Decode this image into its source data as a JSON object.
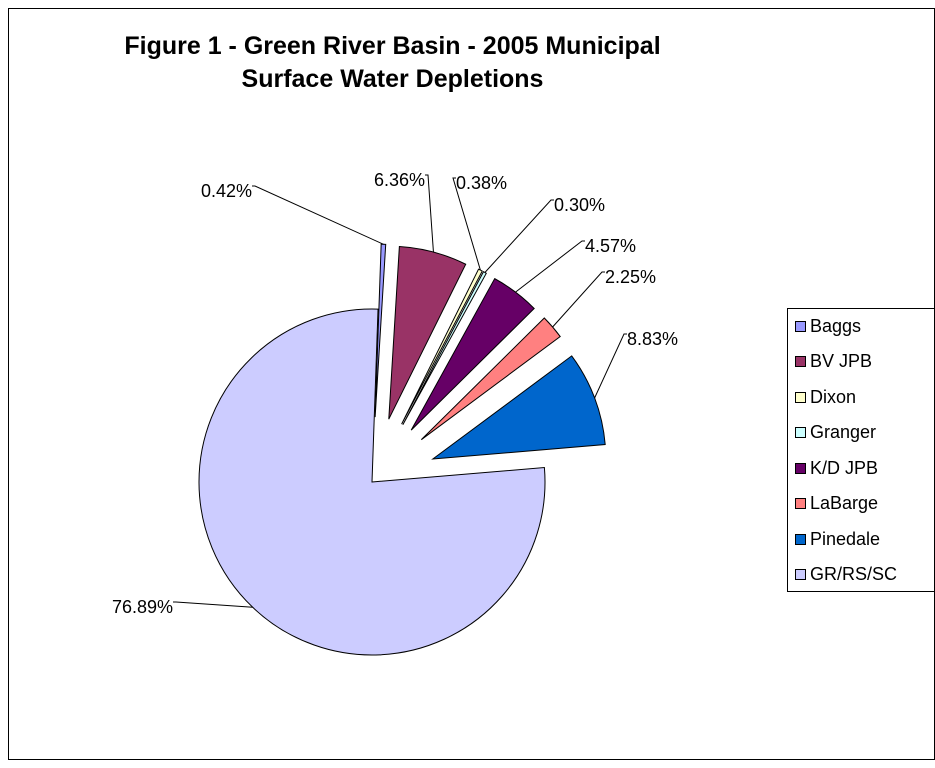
{
  "chart_data": {
    "type": "pie",
    "title_line1": "Figure 1 - Green River Basin - 2005 Municipal",
    "title_line2": "Surface Water Depletions",
    "slices": [
      {
        "label": "Baggs",
        "value": 0.42,
        "display": "0.42%",
        "color": "#9999ff"
      },
      {
        "label": "BV JPB",
        "value": 6.36,
        "display": "6.36%",
        "color": "#993366"
      },
      {
        "label": "Dixon",
        "value": 0.38,
        "display": "0.38%",
        "color": "#ffffcc"
      },
      {
        "label": "Granger",
        "value": 0.3,
        "display": "0.30%",
        "color": "#ccffff"
      },
      {
        "label": "K/D JPB",
        "value": 4.57,
        "display": "4.57%",
        "color": "#660066"
      },
      {
        "label": "LaBarge",
        "value": 2.25,
        "display": "2.25%",
        "color": "#ff8080"
      },
      {
        "label": "Pinedale",
        "value": 8.83,
        "display": "8.83%",
        "color": "#0066cc"
      },
      {
        "label": "GR/RS/SC",
        "value": 76.89,
        "display": "76.89%",
        "color": "#ccccff"
      }
    ],
    "legend_position": "right"
  }
}
